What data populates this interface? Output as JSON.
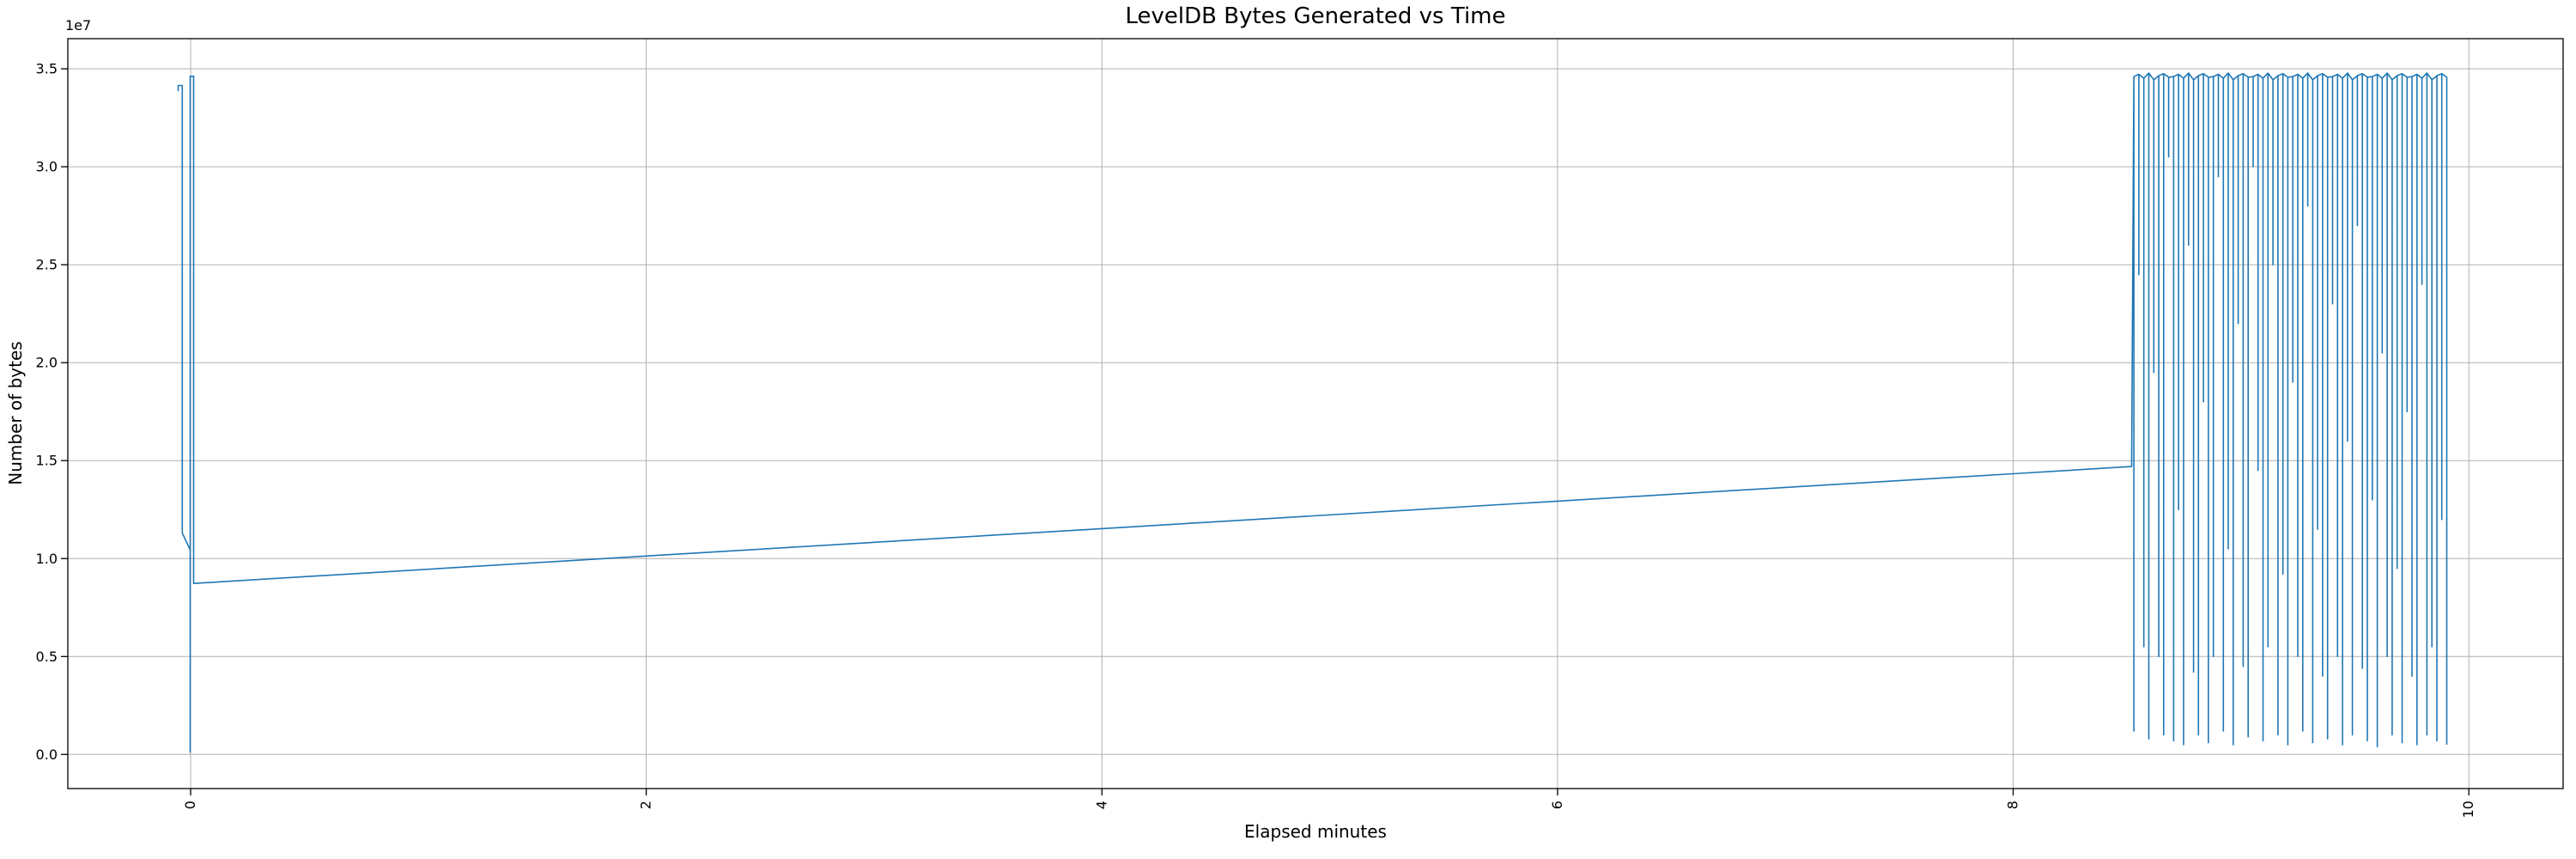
{
  "chart_data": {
    "type": "line",
    "title": "LevelDB Bytes Generated vs Time",
    "xlabel": "Elapsed minutes",
    "ylabel": "Number of bytes",
    "y_offset_label": "1e7",
    "line_color": "#1f77b4",
    "grid_color": "#b0b0b0",
    "spine_color": "#000000",
    "grid": true,
    "legend": false,
    "xlim": [
      -0.539,
      10.414
    ],
    "ylim": [
      -1740000,
      36540000
    ],
    "xticks": [
      0,
      2,
      4,
      6,
      8,
      10
    ],
    "xtick_labels": [
      "0",
      "2",
      "4",
      "6",
      "8",
      "10"
    ],
    "xtick_rotation_deg": 90,
    "yticks": [
      0,
      5000000,
      10000000,
      15000000,
      20000000,
      25000000,
      30000000,
      35000000
    ],
    "ytick_labels": [
      "0.0",
      "0.5",
      "1.0",
      "1.5",
      "2.0",
      "2.5",
      "3.0",
      "3.5"
    ],
    "series": [
      {
        "name": "leveldb-bytes-generated",
        "color": "#1f77b4",
        "points_head": [
          [
            -0.0546,
            33860000.0
          ],
          [
            -0.0546,
            34150000.0
          ],
          [
            -0.0365,
            34150000.0
          ],
          [
            -0.0365,
            11300000.0
          ],
          [
            -0.002,
            10450000.0
          ],
          [
            -0.002,
            120000.0
          ],
          [
            -0.002,
            34620000.0
          ],
          [
            0.013,
            34620000.0
          ],
          [
            0.013,
            8730000.0
          ]
        ],
        "ramp_points": [
          [
            2.0,
            10130000.0
          ],
          [
            4.0,
            11530000.0
          ],
          [
            6.0,
            12930000.0
          ],
          [
            8.0,
            14330000.0
          ],
          [
            8.52,
            14700000.0
          ]
        ],
        "burst": {
          "t_start": 8.53,
          "dt": 0.0218,
          "tops": [
            34600000.0,
            34720000.0,
            34520000.0,
            34780000.0,
            34440000.0,
            34650000.0,
            34750000.0,
            34570000.0,
            34600000.0,
            34720000.0,
            34520000.0,
            34780000.0,
            34440000.0,
            34650000.0,
            34750000.0,
            34570000.0,
            34600000.0,
            34720000.0,
            34520000.0,
            34780000.0,
            34440000.0,
            34650000.0,
            34750000.0,
            34570000.0,
            34600000.0,
            34720000.0,
            34520000.0,
            34780000.0,
            34440000.0,
            34650000.0,
            34750000.0,
            34570000.0,
            34600000.0,
            34720000.0,
            34520000.0,
            34780000.0,
            34440000.0,
            34650000.0,
            34750000.0,
            34570000.0,
            34600000.0,
            34720000.0,
            34520000.0,
            34780000.0,
            34440000.0,
            34650000.0,
            34750000.0,
            34570000.0,
            34600000.0,
            34720000.0,
            34520000.0,
            34780000.0,
            34440000.0,
            34650000.0,
            34750000.0,
            34570000.0,
            34600000.0,
            34720000.0,
            34520000.0,
            34780000.0,
            34440000.0,
            34650000.0,
            34750000.0,
            34570000.0
          ],
          "bottoms": [
            1200000.0,
            24500000.0,
            5500000.0,
            800000.0,
            19500000.0,
            5000000.0,
            1000000.0,
            30500000.0,
            700000.0,
            12500000.0,
            500000.0,
            26000000.0,
            4200000.0,
            1000000.0,
            18000000.0,
            600000.0,
            5000000.0,
            29500000.0,
            1200000.0,
            10500000.0,
            500000.0,
            22000000.0,
            4500000.0,
            900000.0,
            30000000.0,
            14500000.0,
            700000.0,
            5500000.0,
            25000000.0,
            1000000.0,
            9200000.0,
            500000.0,
            19000000.0,
            5000000.0,
            1200000.0,
            28000000.0,
            600000.0,
            11500000.0,
            4000000.0,
            800000.0,
            23000000.0,
            5000000.0,
            500000.0,
            16000000.0,
            1000000.0,
            27000000.0,
            4400000.0,
            700000.0,
            13000000.0,
            400000.0,
            20500000.0,
            5000000.0,
            1000000.0,
            9500000.0,
            600000.0,
            17500000.0,
            4000000.0,
            500000.0,
            24000000.0,
            1000000.0,
            5500000.0,
            700000.0,
            12000000.0,
            500000.0
          ]
        }
      }
    ]
  }
}
